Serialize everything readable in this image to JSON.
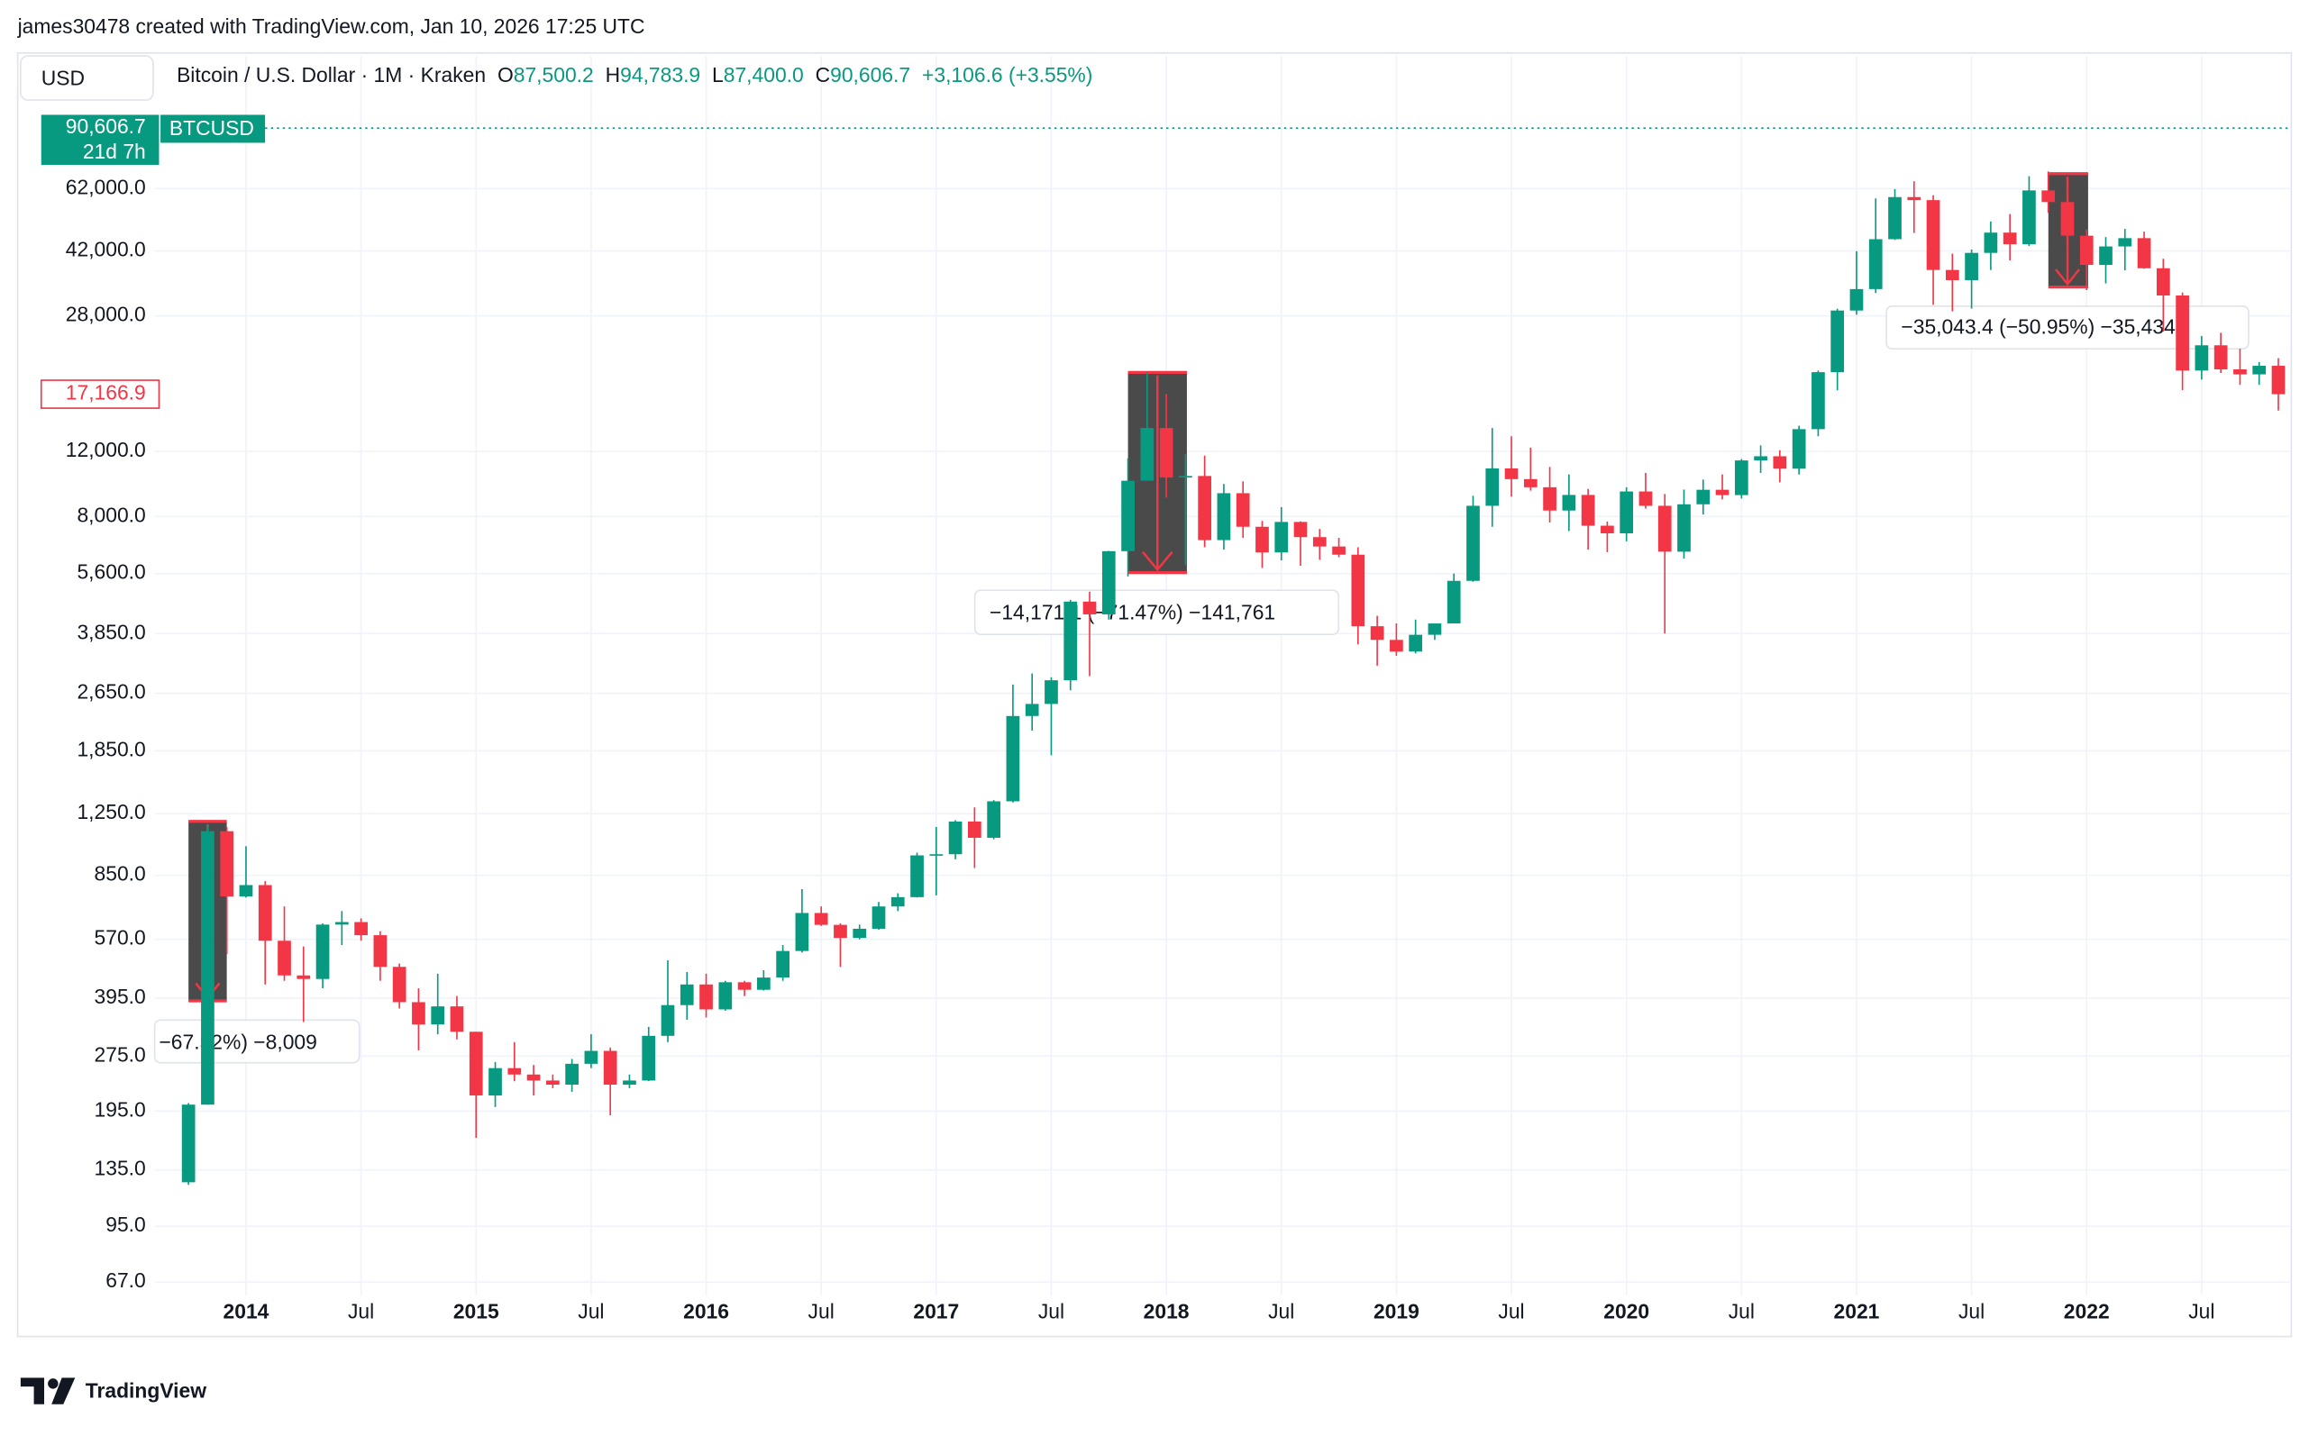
{
  "header": {
    "credit": "james30478 created with TradingView.com, Jan 10, 2026 17:25 UTC",
    "currency": "USD",
    "symbol": "Bitcoin / U.S. Dollar · 1M · Kraken",
    "ohlc": [
      {
        "key": "O",
        "value": "87,500.2"
      },
      {
        "key": "H",
        "value": "94,783.9"
      },
      {
        "key": "L",
        "value": "87,400.0"
      },
      {
        "key": "C",
        "value": "90,606.7"
      }
    ],
    "change": "+3,106.6 (+3.55%)",
    "price_tag": "90,606.7",
    "countdown": "21d 7h",
    "ticker": "BTCUSD"
  },
  "chart_data": {
    "type": "candlestick",
    "categories": [
      "2013-10",
      "2013-11",
      "2013-12",
      "2014-01",
      "2014-02",
      "2014-03",
      "2014-04",
      "2014-05",
      "2014-06",
      "2014-07",
      "2014-08",
      "2014-09",
      "2014-10",
      "2014-11",
      "2014-12",
      "2015-01",
      "2015-02",
      "2015-03",
      "2015-04",
      "2015-05",
      "2015-06",
      "2015-07",
      "2015-08",
      "2015-09",
      "2015-10",
      "2015-11",
      "2015-12",
      "2016-01",
      "2016-02",
      "2016-03",
      "2016-04",
      "2016-05",
      "2016-06",
      "2016-07",
      "2016-08",
      "2016-09",
      "2016-10",
      "2016-11",
      "2016-12",
      "2017-01",
      "2017-02",
      "2017-03",
      "2017-04",
      "2017-05",
      "2017-06",
      "2017-07",
      "2017-08",
      "2017-09",
      "2017-10",
      "2017-11",
      "2017-12",
      "2018-01",
      "2018-02",
      "2018-03",
      "2018-04",
      "2018-05",
      "2018-06",
      "2018-07",
      "2018-08",
      "2018-09",
      "2018-10",
      "2018-11",
      "2018-12",
      "2019-01",
      "2019-02",
      "2019-03",
      "2019-04",
      "2019-05",
      "2019-06",
      "2019-07",
      "2019-08",
      "2019-09",
      "2019-10",
      "2019-11",
      "2019-12",
      "2020-01",
      "2020-02",
      "2020-03",
      "2020-04",
      "2020-05",
      "2020-06",
      "2020-07",
      "2020-08",
      "2020-09",
      "2020-10",
      "2020-11",
      "2020-12",
      "2021-01",
      "2021-02",
      "2021-03",
      "2021-04",
      "2021-05",
      "2021-06",
      "2021-07",
      "2021-08",
      "2021-09",
      "2021-10",
      "2021-11",
      "2021-12",
      "2022-01",
      "2022-02",
      "2022-03",
      "2022-04",
      "2022-05",
      "2022-06",
      "2022-07",
      "2022-08",
      "2022-09",
      "2022-10",
      "2022-11"
    ],
    "ohlc": {
      "open": [
        125,
        203,
        1120,
        745,
        800,
        565,
        455,
        445,
        625,
        635,
        585,
        480,
        385,
        335,
        375,
        320,
        215,
        255,
        245,
        236,
        230,
        262,
        284,
        230,
        236,
        312,
        378,
        430,
        368,
        436,
        416,
        449,
        530,
        672,
        624,
        575,
        609,
        700,
        742,
        963,
        970,
        1190,
        1075,
        1350,
        2300,
        2480,
        2875,
        4700,
        4340,
        6440,
        10000,
        13900,
        10200,
        10300,
        6900,
        9250,
        7500,
        6390,
        7730,
        7030,
        6630,
        6300,
        4030,
        3700,
        3440,
        3820,
        4100,
        5350,
        8550,
        10800,
        10100,
        9600,
        8300,
        9150,
        7550,
        7200,
        9350,
        8550,
        6420,
        8630,
        9450,
        9140,
        11350,
        11650,
        10780,
        13800,
        19700,
        28950,
        33100,
        45200,
        58800,
        57700,
        37300,
        35000,
        41500,
        47100,
        43800,
        61300,
        57000,
        46200,
        38500,
        43200,
        45500,
        37700,
        31800,
        19900,
        23300,
        20050,
        19430,
        20500
      ],
      "high": [
        205,
        1160,
        1150,
        1020,
        820,
        700,
        545,
        630,
        680,
        650,
        600,
        490,
        420,
        460,
        400,
        320,
        265,
        300,
        260,
        245,
        270,
        315,
        290,
        245,
        330,
        500,
        465,
        460,
        440,
        440,
        470,
        550,
        780,
        700,
        630,
        625,
        720,
        760,
        980,
        1150,
        1200,
        1300,
        1360,
        2800,
        3000,
        2930,
        4750,
        5000,
        6450,
        11500,
        19700,
        17200,
        11800,
        11700,
        9800,
        9960,
        7780,
        8480,
        7760,
        7400,
        7000,
        6600,
        4300,
        4100,
        4200,
        4100,
        5600,
        9100,
        13900,
        13200,
        12300,
        10900,
        10400,
        9500,
        7750,
        9600,
        10500,
        9200,
        9460,
        10070,
        10400,
        11450,
        12470,
        12100,
        14100,
        19900,
        29300,
        41950,
        58300,
        61800,
        64900,
        59500,
        41300,
        42400,
        50500,
        52900,
        67000,
        69000,
        59100,
        48000,
        45800,
        48200,
        47400,
        40000,
        32400,
        24700,
        25200,
        22800,
        21000,
        21500
      ],
      "low": [
        123,
        203,
        520,
        740,
        430,
        440,
        340,
        420,
        550,
        565,
        440,
        370,
        285,
        315,
        305,
        165,
        200,
        235,
        215,
        225,
        220,
        255,
        190,
        225,
        235,
        300,
        345,
        350,
        365,
        400,
        414,
        440,
        525,
        620,
        480,
        570,
        605,
        680,
        740,
        750,
        940,
        890,
        1065,
        1340,
        2100,
        1800,
        2700,
        2950,
        4200,
        5500,
        10000,
        9000,
        5900,
        6600,
        6500,
        7000,
        5800,
        6080,
        5880,
        6100,
        6200,
        3600,
        3150,
        3350,
        3400,
        3700,
        4100,
        5320,
        7500,
        9050,
        9400,
        7700,
        7300,
        6500,
        6400,
        6850,
        8400,
        3850,
        6150,
        8100,
        8900,
        8950,
        10500,
        9900,
        10400,
        13200,
        17600,
        28200,
        32300,
        45000,
        47000,
        30000,
        28800,
        29300,
        37300,
        39600,
        43300,
        53300,
        42000,
        32900,
        34300,
        37200,
        37600,
        25400,
        17600,
        18800,
        19600,
        18200,
        18200,
        15500
      ],
      "close": [
        203,
        1120,
        745,
        800,
        565,
        455,
        445,
        625,
        635,
        585,
        480,
        385,
        335,
        375,
        320,
        215,
        255,
        245,
        236,
        230,
        262,
        284,
        230,
        236,
        312,
        378,
        430,
        368,
        436,
        416,
        449,
        530,
        672,
        624,
        575,
        609,
        700,
        742,
        963,
        970,
        1190,
        1075,
        1350,
        2300,
        2480,
        2875,
        4700,
        4340,
        6440,
        10000,
        13900,
        10200,
        10300,
        6900,
        9250,
        7500,
        6390,
        7730,
        7030,
        6630,
        6300,
        4030,
        3700,
        3440,
        3820,
        4100,
        5350,
        8550,
        10800,
        10100,
        9600,
        8300,
        9150,
        7550,
        7200,
        9350,
        8550,
        6420,
        8630,
        9450,
        9140,
        11350,
        11650,
        10780,
        13800,
        19700,
        28950,
        33100,
        45200,
        58800,
        57700,
        37300,
        35000,
        41500,
        47100,
        43800,
        61300,
        57000,
        46200,
        38500,
        43200,
        45500,
        37700,
        31800,
        19900,
        23300,
        20050,
        19430,
        20500,
        17166.9
      ]
    },
    "up_color": "#089981",
    "down_color": "#f23645",
    "yscale": "log",
    "price_axis": "left",
    "grid": true,
    "ylim": [
      61.7,
      142000
    ],
    "yticks": [
      {
        "value": 67,
        "label": "67.0"
      },
      {
        "value": 95,
        "label": "95.0"
      },
      {
        "value": 135,
        "label": "135.0"
      },
      {
        "value": 195,
        "label": "195.0"
      },
      {
        "value": 275,
        "label": "275.0"
      },
      {
        "value": 395,
        "label": "395.0"
      },
      {
        "value": 570,
        "label": "570.0"
      },
      {
        "value": 850,
        "label": "850.0"
      },
      {
        "value": 1250,
        "label": "1,250.0"
      },
      {
        "value": 1850,
        "label": "1,850.0"
      },
      {
        "value": 2650,
        "label": "2,650.0"
      },
      {
        "value": 3850,
        "label": "3,850.0"
      },
      {
        "value": 5600,
        "label": "5,600.0"
      },
      {
        "value": 8000,
        "label": "8,000.0"
      },
      {
        "value": 12000,
        "label": "12,000.0"
      },
      {
        "value": 28000,
        "label": "28,000.0"
      },
      {
        "value": 42000,
        "label": "42,000.0"
      },
      {
        "value": 62000,
        "label": "62,000.0"
      }
    ],
    "xticks": [
      {
        "value": "2014-01",
        "label": "2014"
      },
      {
        "value": "2014-07",
        "label": "Jul"
      },
      {
        "value": "2015-01",
        "label": "2015"
      },
      {
        "value": "2015-07",
        "label": "Jul"
      },
      {
        "value": "2016-01",
        "label": "2016"
      },
      {
        "value": "2016-07",
        "label": "Jul"
      },
      {
        "value": "2017-01",
        "label": "2017"
      },
      {
        "value": "2017-07",
        "label": "Jul"
      },
      {
        "value": "2018-01",
        "label": "2018"
      },
      {
        "value": "2018-07",
        "label": "Jul"
      },
      {
        "value": "2019-01",
        "label": "2019"
      },
      {
        "value": "2019-07",
        "label": "Jul"
      },
      {
        "value": "2020-01",
        "label": "2020"
      },
      {
        "value": "2020-07",
        "label": "Jul"
      },
      {
        "value": "2021-01",
        "label": "2021"
      },
      {
        "value": "2021-07",
        "label": "Jul"
      },
      {
        "value": "2022-01",
        "label": "2022"
      },
      {
        "value": "2022-07",
        "label": "Jul"
      }
    ],
    "last_price_label": "17,166.9",
    "annotations": [
      {
        "label": "−67.52%) −8,009"
      },
      {
        "label": "−14,171.1 (−71.47%) −141,761"
      },
      {
        "label": "−35,043.4 (−50.95%) −35,434"
      }
    ]
  },
  "brand": "TradingView"
}
